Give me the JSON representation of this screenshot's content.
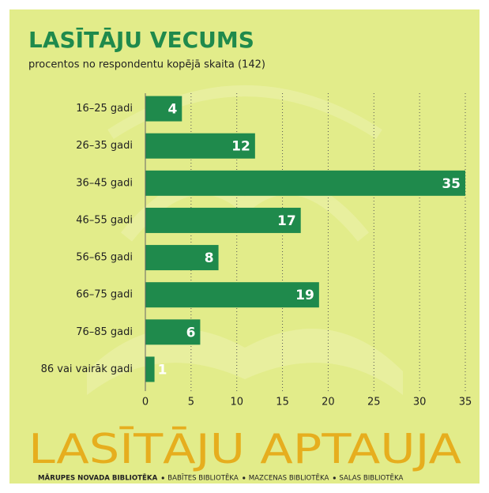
{
  "chart_data": {
    "type": "bar",
    "orientation": "horizontal",
    "title": "LASĪTĀJU VECUMS",
    "subtitle": "procentos no respondentu kopējā skaita (142)",
    "categories": [
      "16–25 gadi",
      "26–35 gadi",
      "36–45 gadi",
      "46–55 gadi",
      "56–65 gadi",
      "66–75 gadi",
      "76–85 gadi",
      "86 vai vairāk gadi"
    ],
    "values": [
      4,
      12,
      35,
      17,
      8,
      19,
      6,
      1
    ],
    "color": "#1f8a4c",
    "xlim": [
      0,
      35
    ],
    "xticks": [
      0,
      5,
      10,
      15,
      20,
      25,
      30,
      35
    ],
    "grid": true,
    "banner": "LASĪTĀJU APTAUJA",
    "footer": [
      "MĀRUPES NOVADA BIBLIOTĒKA",
      "BABĪTES BIBLIOTĒKA",
      "MAZCENAS BIBLIOTĒKA",
      "SALAS BIBLIOTĒKA"
    ]
  }
}
